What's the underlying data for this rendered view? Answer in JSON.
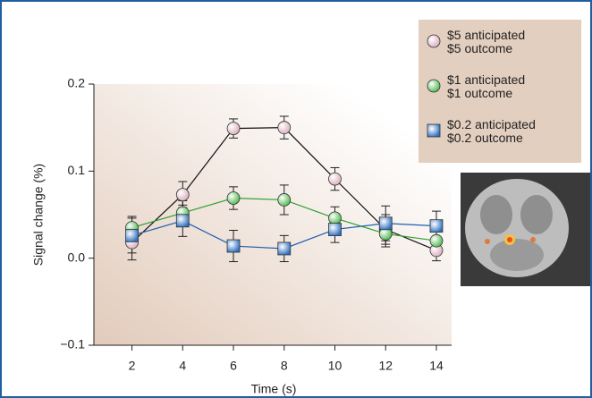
{
  "chart_data": {
    "type": "line",
    "x_label": "Time (s)",
    "y_label": "Signal change (%)",
    "x": [
      2,
      4,
      6,
      8,
      10,
      12,
      14
    ],
    "xlim": [
      0.5,
      14.6
    ],
    "xticks": [
      2,
      4,
      6,
      8,
      10,
      12,
      14
    ],
    "ylim": [
      -0.1,
      0.2
    ],
    "yticks": [
      {
        "value": -0.1,
        "label": "−0.1"
      },
      {
        "value": 0,
        "label": "0.0"
      },
      0.1,
      0.2
    ],
    "legend": "top-right",
    "series": [
      {
        "name": "$5 anticipated\n$5 outcome",
        "marker": "circle",
        "color": "#d9aebb",
        "line_color": "#111111",
        "values": [
          0.018,
          0.073,
          0.149,
          0.15,
          0.091,
          0.033,
          0.009
        ],
        "errors": [
          0.02,
          0.015,
          0.011,
          0.013,
          0.013,
          0.017,
          0.012
        ]
      },
      {
        "name": "$1 anticipated\n$1 outcome",
        "marker": "circle",
        "color": "#4cb84c",
        "line_color": "#2ea02e",
        "values": [
          0.035,
          0.052,
          0.069,
          0.067,
          0.046,
          0.028,
          0.02
        ],
        "errors": [
          0.013,
          0.014,
          0.013,
          0.017,
          0.013,
          0.015,
          0.012
        ]
      },
      {
        "name": "$0.2 anticipated\n$0.2 outcome",
        "marker": "square",
        "color": "#2e6fc0",
        "line_color": "#1f5fae",
        "values": [
          0.026,
          0.043,
          0.014,
          0.011,
          0.033,
          0.04,
          0.037
        ],
        "errors": [
          0.02,
          0.018,
          0.018,
          0.015,
          0.015,
          0.02,
          0.017
        ]
      }
    ]
  }
}
